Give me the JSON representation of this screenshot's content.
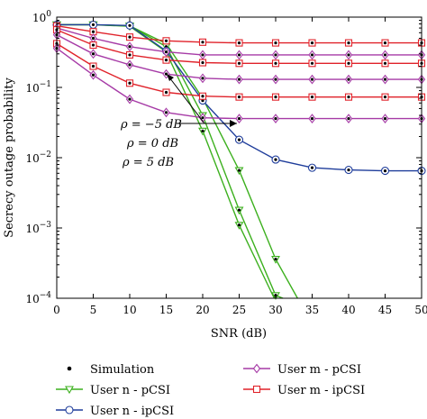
{
  "chart_data": {
    "type": "line",
    "xlabel": "SNR (dB)",
    "ylabel": "Secrecy outage probability",
    "xlim": [
      0,
      50
    ],
    "ylim": [
      0.0001,
      1
    ],
    "yscale": "log",
    "grid": false,
    "legend_position": "bottom",
    "x_ticks": [
      "0",
      "5",
      "10",
      "15",
      "20",
      "25",
      "30",
      "35",
      "40",
      "45",
      "50"
    ],
    "y_ticks": [
      {
        "base": "10",
        "exp": "0"
      },
      {
        "base": "10",
        "exp": "−1"
      },
      {
        "base": "10",
        "exp": "−2"
      },
      {
        "base": "10",
        "exp": "−3"
      },
      {
        "base": "10",
        "exp": "−4"
      }
    ],
    "annotations": [
      "ρ = −5 dB",
      "ρ = 0 dB",
      "ρ = 5 dB"
    ],
    "legend": [
      {
        "label": "Simulation",
        "marker": "dot",
        "color": "#000000"
      },
      {
        "label": "User n - pCSI",
        "marker": "triangle",
        "color": "#3cb01e"
      },
      {
        "label": "User n - ipCSI",
        "marker": "circle",
        "color": "#1f3d9b"
      },
      {
        "label": "User m - pCSI",
        "marker": "diamond",
        "color": "#a63aa6"
      },
      {
        "label": "User m - ipCSI",
        "marker": "square",
        "color": "#e0222a"
      }
    ],
    "series": [
      {
        "legend": "User n - pCSI",
        "color": "#3cb01e",
        "marker": "triangle",
        "x": [
          0,
          5,
          10,
          15,
          20,
          25,
          30,
          33
        ],
        "y": [
          0.78,
          0.78,
          0.75,
          0.42,
          0.07,
          0.0066,
          0.00036,
          0.0001
        ]
      },
      {
        "legend": "User n - pCSI",
        "color": "#3cb01e",
        "marker": "triangle",
        "x": [
          0,
          5,
          10,
          15,
          20,
          25,
          30,
          31
        ],
        "y": [
          0.78,
          0.78,
          0.75,
          0.38,
          0.04,
          0.0018,
          0.00011,
          0.0001
        ]
      },
      {
        "legend": "User n - pCSI",
        "color": "#3cb01e",
        "marker": "triangle",
        "x": [
          0,
          5,
          10,
          15,
          20,
          25,
          29.8
        ],
        "y": [
          0.78,
          0.78,
          0.74,
          0.32,
          0.024,
          0.0011,
          0.0001
        ]
      },
      {
        "legend": "User n - ipCSI",
        "color": "#1f3d9b",
        "marker": "circle",
        "x": [
          0,
          5,
          10,
          15,
          20,
          25,
          30,
          35,
          40,
          45,
          50
        ],
        "y": [
          0.78,
          0.78,
          0.76,
          0.33,
          0.065,
          0.018,
          0.0094,
          0.0072,
          0.0067,
          0.0065,
          0.0065
        ]
      },
      {
        "legend": "User m - ipCSI",
        "color": "#e0222a",
        "marker": "square",
        "x": [
          0,
          5,
          10,
          15,
          20,
          25,
          30,
          35,
          40,
          45,
          50
        ],
        "y": [
          0.75,
          0.62,
          0.52,
          0.46,
          0.44,
          0.43,
          0.43,
          0.43,
          0.43,
          0.43,
          0.43
        ]
      },
      {
        "legend": "User m - pCSI",
        "color": "#a63aa6",
        "marker": "diamond",
        "x": [
          0,
          5,
          10,
          15,
          20,
          25,
          30,
          35,
          40,
          45,
          50
        ],
        "y": [
          0.7,
          0.5,
          0.38,
          0.32,
          0.29,
          0.29,
          0.29,
          0.29,
          0.29,
          0.29,
          0.29
        ]
      },
      {
        "legend": "User m - ipCSI",
        "color": "#e0222a",
        "marker": "square",
        "x": [
          0,
          5,
          10,
          15,
          20,
          25,
          30,
          35,
          40,
          45,
          50
        ],
        "y": [
          0.66,
          0.4,
          0.29,
          0.245,
          0.225,
          0.22,
          0.22,
          0.22,
          0.22,
          0.22,
          0.22
        ]
      },
      {
        "legend": "User m - pCSI",
        "color": "#a63aa6",
        "marker": "diamond",
        "x": [
          0,
          5,
          10,
          15,
          20,
          25,
          30,
          35,
          40,
          45,
          50
        ],
        "y": [
          0.56,
          0.3,
          0.21,
          0.155,
          0.135,
          0.13,
          0.13,
          0.13,
          0.13,
          0.13,
          0.13
        ]
      },
      {
        "legend": "User m - ipCSI",
        "color": "#e0222a",
        "marker": "square",
        "x": [
          0,
          5,
          10,
          15,
          20,
          25,
          30,
          35,
          40,
          45,
          50
        ],
        "y": [
          0.42,
          0.2,
          0.115,
          0.085,
          0.075,
          0.073,
          0.073,
          0.073,
          0.073,
          0.073,
          0.073
        ]
      },
      {
        "legend": "User m - pCSI",
        "color": "#a63aa6",
        "marker": "diamond",
        "x": [
          0,
          5,
          10,
          15,
          20,
          25,
          30,
          35,
          40,
          45,
          50
        ],
        "y": [
          0.36,
          0.15,
          0.068,
          0.044,
          0.037,
          0.036,
          0.036,
          0.036,
          0.036,
          0.036,
          0.036
        ]
      }
    ]
  }
}
